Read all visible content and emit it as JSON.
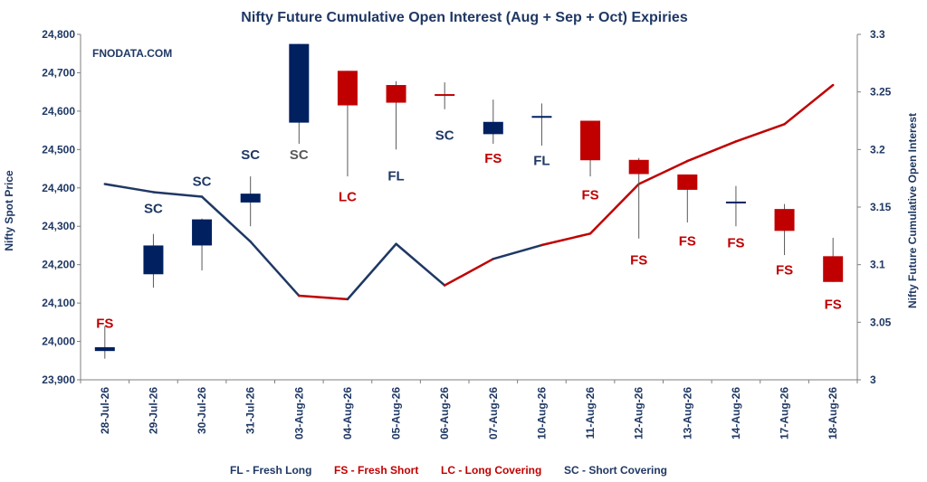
{
  "chart_data": {
    "type": "candlestick+line",
    "title": "Nifty Future Cumulative Open Interest (Aug + Sep + Oct) Expiries",
    "watermark": "FNODATA.COM",
    "ylabel_left": "Nifty Spot Price",
    "ylabel_right": "Nifty Future Cumulative Open Interest",
    "ylim_left": [
      23900,
      24800
    ],
    "yticks_left": [
      "23,900",
      "24,000",
      "24,100",
      "24,200",
      "24,300",
      "24,400",
      "24,500",
      "24,600",
      "24,700",
      "24,800"
    ],
    "ylim_right": [
      3.0,
      3.3
    ],
    "yticks_right": [
      "3",
      "3.05",
      "3.1",
      "3.15",
      "3.2",
      "3.25",
      "3.3"
    ],
    "categories": [
      "28-Jul-26",
      "29-Jul-26",
      "30-Jul-26",
      "31-Jul-26",
      "03-Aug-26",
      "04-Aug-26",
      "05-Aug-26",
      "06-Aug-26",
      "07-Aug-26",
      "10-Aug-26",
      "11-Aug-26",
      "12-Aug-26",
      "13-Aug-26",
      "14-Aug-26",
      "17-Aug-26",
      "18-Aug-26"
    ],
    "candles": [
      {
        "open": 23985,
        "high": 24040,
        "low": 23955,
        "close": 23975,
        "color": "#002060"
      },
      {
        "open": 24175,
        "high": 24280,
        "low": 24140,
        "close": 24250,
        "color": "#002060"
      },
      {
        "open": 24250,
        "high": 24320,
        "low": 24185,
        "close": 24318,
        "color": "#002060"
      },
      {
        "open": 24362,
        "high": 24430,
        "low": 24300,
        "close": 24385,
        "color": "#002060"
      },
      {
        "open": 24570,
        "high": 24775,
        "low": 24515,
        "close": 24775,
        "color": "#002060"
      },
      {
        "open": 24705,
        "high": 24705,
        "low": 24430,
        "close": 24615,
        "color": "#c00000"
      },
      {
        "open": 24668,
        "high": 24678,
        "low": 24500,
        "close": 24622,
        "color": "#c00000"
      },
      {
        "open": 24640,
        "high": 24675,
        "low": 24605,
        "close": 24642,
        "color": "#c00000"
      },
      {
        "open": 24540,
        "high": 24630,
        "low": 24515,
        "close": 24572,
        "color": "#002060"
      },
      {
        "open": 24585,
        "high": 24620,
        "low": 24510,
        "close": 24585,
        "color": "#002060"
      },
      {
        "open": 24575,
        "high": 24575,
        "low": 24430,
        "close": 24472,
        "color": "#c00000"
      },
      {
        "open": 24473,
        "high": 24478,
        "low": 24268,
        "close": 24436,
        "color": "#c00000"
      },
      {
        "open": 24435,
        "high": 24435,
        "low": 24310,
        "close": 24395,
        "color": "#c00000"
      },
      {
        "open": 24362,
        "high": 24405,
        "low": 24300,
        "close": 24362,
        "color": "#002060"
      },
      {
        "open": 24345,
        "high": 24358,
        "low": 24225,
        "close": 24288,
        "color": "#c00000"
      },
      {
        "open": 24222,
        "high": 24270,
        "low": 24155,
        "close": 24155,
        "color": "#c00000"
      }
    ],
    "open_interest": [
      3.17,
      3.163,
      3.159,
      3.12,
      3.073,
      3.07,
      3.118,
      3.082,
      3.105,
      3.117,
      3.127,
      3.17,
      3.19,
      3.207,
      3.222,
      3.256
    ],
    "oi_segment_colors": [
      "#1f3864",
      "#1f3864",
      "#1f3864",
      "#1f3864",
      "#c00000",
      "#1f3864",
      "#1f3864",
      "#c00000",
      "#1f3864",
      "#c00000",
      "#c00000",
      "#c00000",
      "#c00000",
      "#c00000",
      "#c00000"
    ],
    "annotations": [
      {
        "label": "FS",
        "price": 24035,
        "color": "#c00000"
      },
      {
        "label": "SC",
        "price": 24335,
        "color": "#1f3864"
      },
      {
        "label": "SC",
        "price": 24405,
        "color": "#1f3864"
      },
      {
        "label": "SC",
        "price": 24475,
        "color": "#1f3864"
      },
      {
        "label": "SC",
        "price": 24475,
        "color": "#595959"
      },
      {
        "label": "LC",
        "price": 24365,
        "color": "#c00000"
      },
      {
        "label": "FL",
        "price": 24420,
        "color": "#1f3864"
      },
      {
        "label": "SC",
        "price": 24525,
        "color": "#1f3864"
      },
      {
        "label": "FS",
        "price": 24465,
        "color": "#c00000"
      },
      {
        "label": "FL",
        "price": 24460,
        "color": "#1f3864"
      },
      {
        "label": "FS",
        "price": 24370,
        "color": "#c00000"
      },
      {
        "label": "FS",
        "price": 24200,
        "color": "#c00000"
      },
      {
        "label": "FS",
        "price": 24250,
        "color": "#c00000"
      },
      {
        "label": "FS",
        "price": 24245,
        "color": "#c00000"
      },
      {
        "label": "FS",
        "price": 24175,
        "color": "#c00000"
      },
      {
        "label": "FS",
        "price": 24085,
        "color": "#c00000"
      }
    ],
    "grid": false
  },
  "legend": [
    {
      "label": "FL - Fresh Long",
      "color": "#1f3864"
    },
    {
      "label": "FS - Fresh Short",
      "color": "#c00000"
    },
    {
      "label": "LC - Long Covering",
      "color": "#c00000"
    },
    {
      "label": "SC - Short Covering",
      "color": "#1f3864"
    }
  ]
}
